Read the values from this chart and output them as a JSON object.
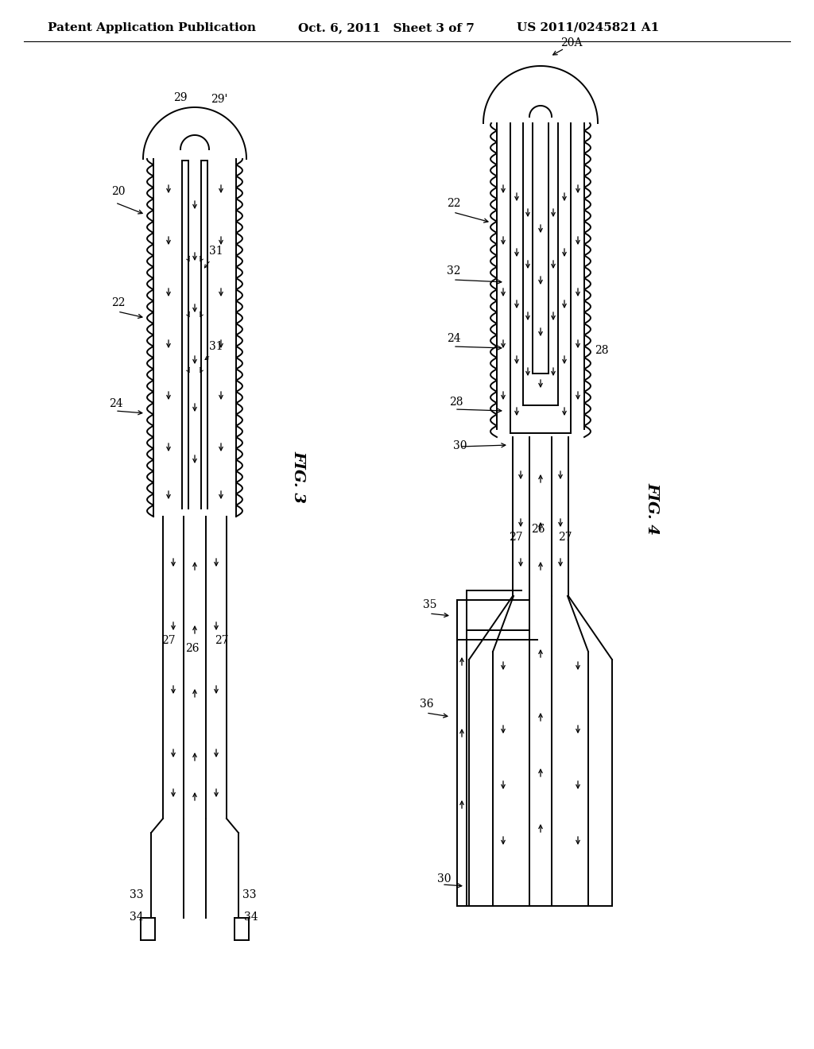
{
  "header_left": "Patent Application Publication",
  "header_mid": "Oct. 6, 2011   Sheet 3 of 7",
  "header_right": "US 2011/0245821 A1",
  "fig3_label": "FIG. 3",
  "fig4_label": "FIG. 4",
  "bg_color": "#ffffff",
  "line_color": "#000000",
  "text_color": "#000000",
  "header_fontsize": 11,
  "label_fontsize": 10,
  "fig_label_fontsize": 14
}
